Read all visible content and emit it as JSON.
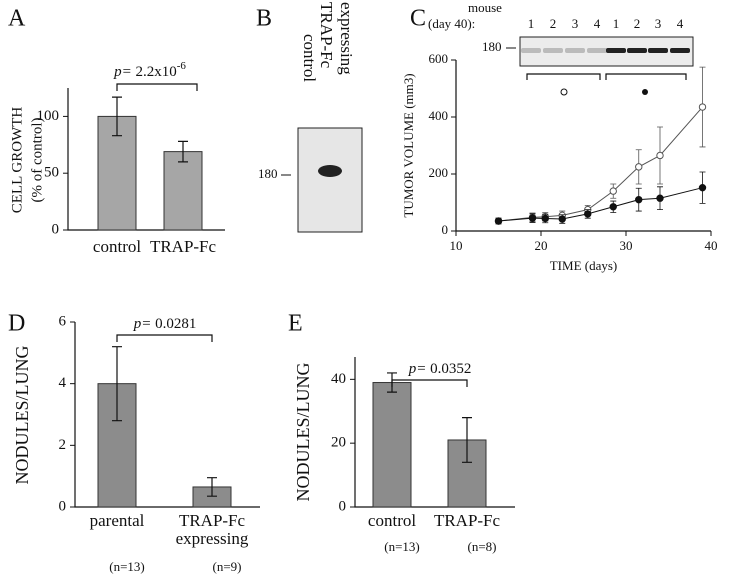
{
  "chart_data": [
    {
      "type": "bar",
      "panel": "A",
      "y_label": [
        "CELL GROWTH",
        "(% of control)"
      ],
      "categories": [
        [
          "control"
        ],
        [
          "TRAP-Fc"
        ]
      ],
      "values": [
        100,
        69
      ],
      "errors": [
        17,
        9
      ],
      "color": "#a6a6a6",
      "ylim": [
        0,
        125
      ],
      "yticks": [
        0,
        50,
        100
      ],
      "p_label": "p=",
      "p_value": " 2.2x10",
      "p_exponent": "-6"
    },
    {
      "type": "blot",
      "panel": "B",
      "lanes": [
        [
          "control"
        ],
        [
          "TRAP-Fc",
          "expressing"
        ]
      ],
      "marker": "180"
    },
    {
      "type": "line",
      "panel": "C",
      "x_label": "TIME (days)",
      "y_label": "TUMOR VOLUME (mm3)",
      "x": [
        15,
        19,
        20.5,
        22.5,
        25.5,
        28.5,
        31.5,
        34,
        39
      ],
      "series": [
        {
          "marker": "open",
          "color": "#555555",
          "values": [
            35,
            48,
            50,
            55,
            75,
            140,
            225,
            265,
            435
          ],
          "errors": [
            10,
            15,
            15,
            15,
            15,
            25,
            60,
            100,
            140
          ]
        },
        {
          "marker": "filled",
          "color": "#111111",
          "values": [
            35,
            45,
            44,
            42,
            60,
            85,
            110,
            115,
            152
          ],
          "errors": [
            10,
            15,
            15,
            15,
            15,
            20,
            40,
            40,
            55
          ]
        }
      ],
      "xlim": [
        10,
        40
      ],
      "xticks": [
        10,
        20,
        30,
        40
      ],
      "ylim": [
        0,
        600
      ],
      "yticks": [
        0,
        200,
        400,
        600
      ],
      "inset": {
        "label": [
          "mouse",
          "(day 40):"
        ],
        "lanes": [
          "1",
          "2",
          "3",
          "4",
          "1",
          "2",
          "3",
          "4"
        ],
        "marker": "180"
      }
    },
    {
      "type": "bar",
      "panel": "D",
      "y_label": [
        "NODULES/LUNG"
      ],
      "categories": [
        [
          "parental"
        ],
        [
          "TRAP-Fc",
          "expressing"
        ]
      ],
      "n_labels": [
        "(n=13)",
        "(n=9)"
      ],
      "values": [
        4.0,
        0.65
      ],
      "errors": [
        1.2,
        0.3
      ],
      "color": "#8c8c8c",
      "ylim": [
        0,
        6
      ],
      "yticks": [
        0,
        2,
        4,
        6
      ],
      "p_label": "p=",
      "p_value": " 0.0281"
    },
    {
      "type": "bar",
      "panel": "E",
      "y_label": [
        "NODULES/LUNG"
      ],
      "categories": [
        [
          "control"
        ],
        [
          "TRAP-Fc"
        ]
      ],
      "n_labels": [
        "(n=13)",
        "(n=8)"
      ],
      "values": [
        39,
        21
      ],
      "errors": [
        3,
        7
      ],
      "color": "#8c8c8c",
      "ylim": [
        0,
        47
      ],
      "yticks": [
        0,
        20,
        40
      ],
      "p_label": "p=",
      "p_value": " 0.0352"
    }
  ]
}
